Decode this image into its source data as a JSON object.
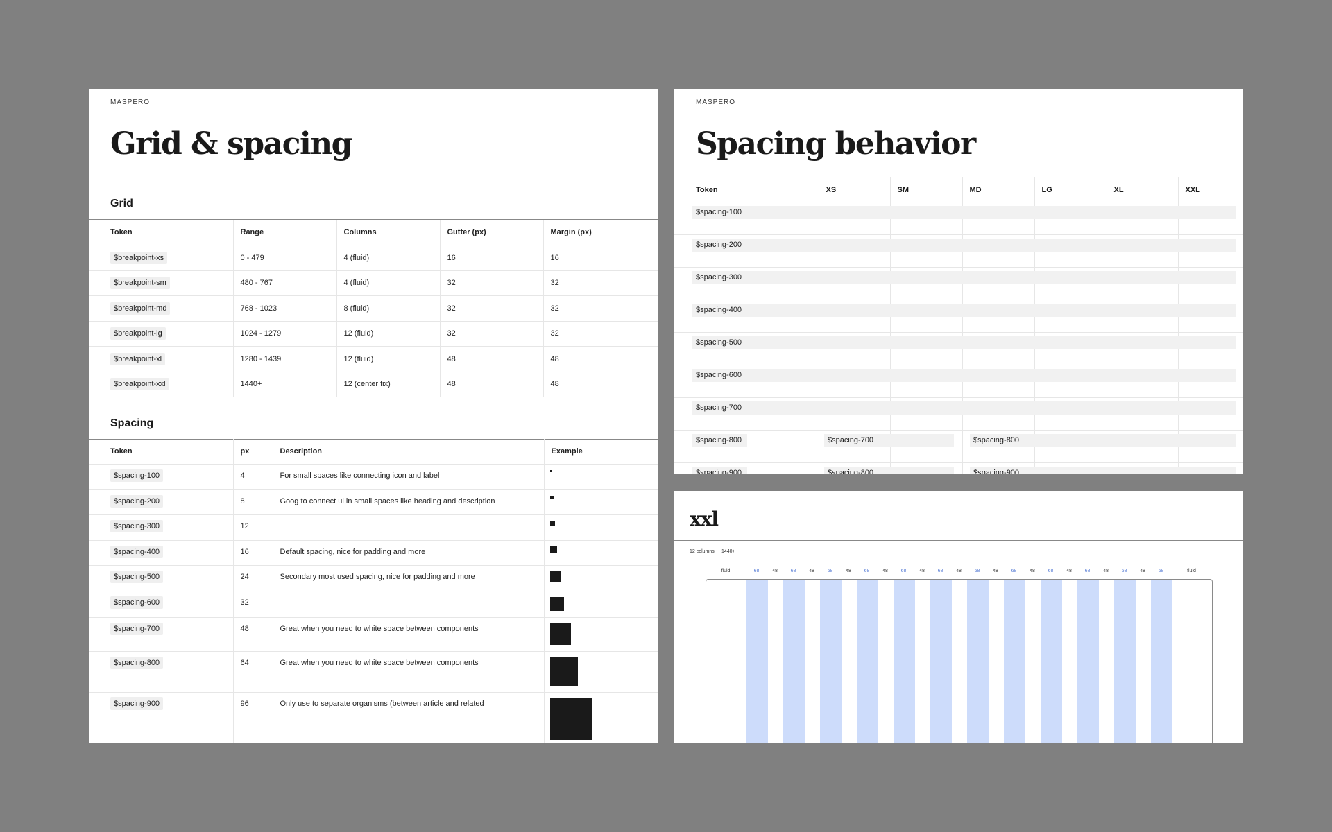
{
  "grid_spacing": {
    "brand": "MASPERO",
    "title": "Grid & spacing",
    "grid_heading": "Grid",
    "grid_columns": [
      "Token",
      "Range",
      "Columns",
      "Gutter (px)",
      "Margin (px)"
    ],
    "grid_rows": [
      {
        "token": "$breakpoint-xs",
        "range": "0 - 479",
        "columns": "4 (fluid)",
        "gutter": "16",
        "margin": "16"
      },
      {
        "token": "$breakpoint-sm",
        "range": "480 - 767",
        "columns": "4 (fluid)",
        "gutter": "32",
        "margin": "32"
      },
      {
        "token": "$breakpoint-md",
        "range": "768 - 1023",
        "columns": "8 (fluid)",
        "gutter": "32",
        "margin": "32"
      },
      {
        "token": "$breakpoint-lg",
        "range": "1024 - 1279",
        "columns": "12 (fluid)",
        "gutter": "32",
        "margin": "32"
      },
      {
        "token": "$breakpoint-xl",
        "range": "1280 - 1439",
        "columns": "12 (fluid)",
        "gutter": "48",
        "margin": "48"
      },
      {
        "token": "$breakpoint-xxl",
        "range": "1440+",
        "columns": "12 (center fix)",
        "gutter": "48",
        "margin": "48"
      }
    ],
    "spacing_heading": "Spacing",
    "spacing_columns": [
      "Token",
      "px",
      "Description",
      "Example"
    ],
    "spacing_rows": [
      {
        "token": "$spacing-100",
        "px": "4",
        "description": "For small spaces like connecting icon and label"
      },
      {
        "token": "$spacing-200",
        "px": "8",
        "description": "Goog to connect ui in small spaces like heading and description"
      },
      {
        "token": "$spacing-300",
        "px": "12",
        "description": ""
      },
      {
        "token": "$spacing-400",
        "px": "16",
        "description": "Default spacing, nice for padding and more"
      },
      {
        "token": "$spacing-500",
        "px": "24",
        "description": "Secondary most used spacing, nice for padding and more"
      },
      {
        "token": "$spacing-600",
        "px": "32",
        "description": ""
      },
      {
        "token": "$spacing-700",
        "px": "48",
        "description": "Great when you need to white space between components"
      },
      {
        "token": "$spacing-800",
        "px": "64",
        "description": "Great when you need to white space between components"
      },
      {
        "token": "$spacing-900",
        "px": "96",
        "description": "Only use to separate organisms (between article and related"
      }
    ]
  },
  "spacing_behavior": {
    "brand": "MASPERO",
    "title": "Spacing behavior",
    "columns": [
      "Token",
      "XS",
      "SM",
      "MD",
      "LG",
      "XL",
      "XXL"
    ],
    "rows": [
      {
        "token": "$spacing-100"
      },
      {
        "token": "$spacing-200"
      },
      {
        "token": "$spacing-300"
      },
      {
        "token": "$spacing-400"
      },
      {
        "token": "$spacing-500"
      },
      {
        "token": "$spacing-600"
      },
      {
        "token": "$spacing-700"
      },
      {
        "token": "$spacing-800",
        "xs_sm": "$spacing-700",
        "md_xxl": "$spacing-800"
      },
      {
        "token": "$spacing-900",
        "xs_sm": "$spacing-800",
        "md_xxl": "$spacing-900"
      }
    ]
  },
  "xxl": {
    "title": "xxl",
    "columns_label": "12 columns",
    "range_label": "1440+",
    "margin_label": "fluid",
    "gutter_label": "48",
    "column_width_label": "68",
    "column_count": 12,
    "column_color": "#cddcfb"
  },
  "colors": {
    "background": "#808080",
    "panel": "#ffffff",
    "token_chip": "#efefef",
    "example_square": "#1a1a1a",
    "grid_label_accent": "#5b7fd6"
  }
}
